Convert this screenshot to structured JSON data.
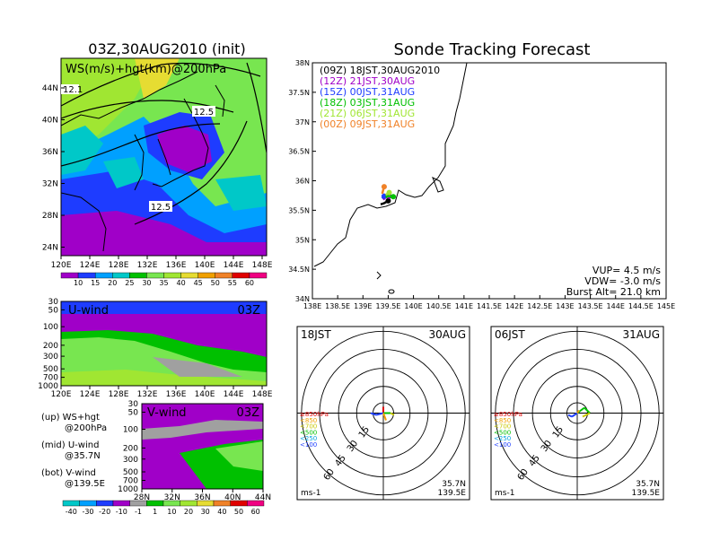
{
  "left": {
    "title": "03Z,30AUG2010 (init)",
    "map_label": "WS(m/s)+hgt(km)@200hPa",
    "contour_labels": [
      "12.5",
      "12.5",
      "12.1"
    ],
    "map_lat_ticks": [
      "44N",
      "40N",
      "36N",
      "32N",
      "28N",
      "24N"
    ],
    "map_lon_ticks": [
      "120E",
      "124E",
      "128E",
      "132E",
      "136E",
      "140E",
      "144E",
      "148E"
    ],
    "ws_colorbar": [
      "10",
      "15",
      "20",
      "25",
      "30",
      "35",
      "40",
      "45",
      "50",
      "55",
      "60"
    ],
    "uwind_label": "U-wind",
    "uwind_time": "03Z",
    "uwind_p_ticks": [
      "30",
      "50",
      "100",
      "200",
      "300",
      "500",
      "700",
      "1000"
    ],
    "uwind_lon_ticks": [
      "120E",
      "124E",
      "128E",
      "132E",
      "136E",
      "140E",
      "144E",
      "148E"
    ],
    "vwind_label": "V-wind",
    "vwind_time": "03Z",
    "vwind_p_ticks": [
      "30",
      "50",
      "100",
      "200",
      "300",
      "500",
      "700",
      "1000"
    ],
    "vwind_lat_ticks": [
      "28N",
      "32N",
      "36N",
      "40N",
      "44N"
    ],
    "legend_lines": [
      [
        "(up) WS+hgt",
        "@200hPa"
      ],
      [
        "(mid) U-wind",
        "@35.7N"
      ],
      [
        "(bot) V-wind",
        "@139.5E"
      ]
    ],
    "uv_colorbar": [
      "-40",
      "-30",
      "-20",
      "-10",
      "-1",
      "1",
      "10",
      "20",
      "30",
      "40",
      "50",
      "60"
    ]
  },
  "right": {
    "title": "Sonde Tracking Forecast",
    "legend": [
      {
        "text": "(09Z) 18JST,30AUG2010",
        "color": "#000000"
      },
      {
        "text": "(12Z) 21JST,30AUG",
        "color": "#a000c8"
      },
      {
        "text": "(15Z) 00JST,31AUG",
        "color": "#1e3cff"
      },
      {
        "text": "(18Z) 03JST,31AUG",
        "color": "#00c000"
      },
      {
        "text": "(21Z) 06JST,31AUG",
        "color": "#a0e632"
      },
      {
        "text": "(00Z) 09JST,31AUG",
        "color": "#f08228"
      }
    ],
    "lat_ticks": [
      "38N",
      "37.5N",
      "37N",
      "36.5N",
      "36N",
      "35.5N",
      "35N",
      "34.5N",
      "34N"
    ],
    "lon_ticks": [
      "138E",
      "138.5E",
      "139E",
      "139.5E",
      "140E",
      "140.5E",
      "141E",
      "141.5E",
      "142E",
      "142.5E",
      "143E",
      "143.5E",
      "144E",
      "144.5E",
      "145E"
    ],
    "vup": "VUP= 4.5 m/s",
    "vdw": "VDW= -3.0 m/s",
    "burst": "Burst Alt= 21.0 km"
  },
  "hodographs": [
    {
      "time": "18JST",
      "date": "30AUG",
      "ring_labels": [
        "15",
        "30",
        "45",
        "60"
      ],
      "levels": [
        {
          "text": "≥850hPa",
          "color": "#e00000"
        },
        {
          "text": "<850",
          "color": "#f0a000"
        },
        {
          "text": "<700",
          "color": "#c8c800"
        },
        {
          "text": "<500",
          "color": "#00c000"
        },
        {
          "text": "<250",
          "color": "#00a0e0"
        },
        {
          "text": "<100",
          "color": "#2040ff"
        }
      ],
      "unit": "ms-1",
      "lat": "35.7N",
      "lon": "139.5E"
    },
    {
      "time": "06JST",
      "date": "31AUG",
      "ring_labels": [
        "15",
        "30",
        "45",
        "60"
      ],
      "levels": [
        {
          "text": "≥850hPa",
          "color": "#e00000"
        },
        {
          "text": "<850",
          "color": "#f0a000"
        },
        {
          "text": "<700",
          "color": "#c8c800"
        },
        {
          "text": "<500",
          "color": "#00c000"
        },
        {
          "text": "<250",
          "color": "#00a0e0"
        },
        {
          "text": "<100",
          "color": "#2040ff"
        }
      ],
      "unit": "ms-1",
      "lat": "35.7N",
      "lon": "139.5E"
    }
  ],
  "chart_data": [
    {
      "type": "heatmap",
      "title": "03Z,30AUG2010 (init)",
      "subtitle": "WS(m/s)+hgt(km)@200hPa",
      "xlim": [
        120,
        148
      ],
      "ylim": [
        22,
        47
      ],
      "colorbar": [
        10,
        15,
        20,
        25,
        30,
        35,
        40,
        45,
        50,
        55,
        60
      ],
      "contour_labels": [
        12.5,
        12.5,
        12.1
      ]
    },
    {
      "type": "heatmap",
      "title": "U-wind",
      "xlim": [
        120,
        148
      ],
      "pressure_levels": [
        30,
        50,
        100,
        200,
        300,
        500,
        700,
        1000
      ]
    },
    {
      "type": "heatmap",
      "title": "V-wind",
      "xlim": [
        28,
        44
      ],
      "pressure_levels": [
        30,
        50,
        100,
        200,
        300,
        500,
        700,
        1000
      ],
      "colorbar": [
        -40,
        -30,
        -20,
        -10,
        -1,
        1,
        10,
        20,
        30,
        40,
        50,
        60
      ]
    },
    {
      "type": "line",
      "title": "Sonde Tracking Forecast",
      "xlim": [
        138,
        145
      ],
      "ylim": [
        34,
        38
      ],
      "series": [
        {
          "name": "(09Z) 18JST,30AUG2010",
          "points": [
            [
              139.35,
              35.6
            ],
            [
              139.42,
              35.62
            ],
            [
              139.5,
              35.66
            ]
          ]
        },
        {
          "name": "(12Z) 21JST,30AUG",
          "points": [
            [
              139.4,
              35.68
            ],
            [
              139.45,
              35.72
            ],
            [
              139.52,
              35.74
            ]
          ]
        },
        {
          "name": "(15Z) 00JST,31AUG",
          "points": [
            [
              139.38,
              35.7
            ],
            [
              139.42,
              35.74
            ]
          ]
        },
        {
          "name": "(18Z) 03JST,31AUG",
          "points": [
            [
              139.45,
              35.72
            ],
            [
              139.5,
              35.74
            ],
            [
              139.6,
              35.73
            ]
          ]
        },
        {
          "name": "(21Z) 06JST,31AUG",
          "points": [
            [
              139.45,
              35.76
            ],
            [
              139.52,
              35.8
            ]
          ]
        },
        {
          "name": "(00Z) 09JST,31AUG",
          "points": [
            [
              139.38,
              35.78
            ],
            [
              139.42,
              35.9
            ]
          ]
        }
      ],
      "annotations": [
        "VUP= 4.5 m/s",
        "VDW= -3.0 m/s",
        "Burst Alt= 21.0 km"
      ]
    }
  ]
}
